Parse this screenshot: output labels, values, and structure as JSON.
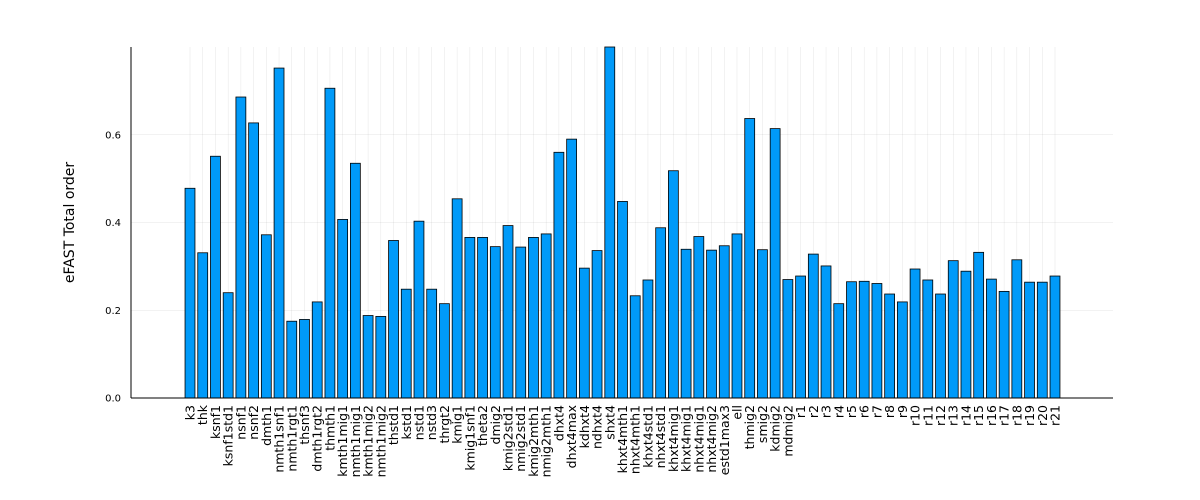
{
  "chart_data": {
    "type": "bar",
    "title": "",
    "xlabel": "",
    "ylabel": "eFAST Total order",
    "ylim": [
      0,
      0.8
    ],
    "yticks": [
      0.0,
      0.2,
      0.4,
      0.6
    ],
    "ytick_labels": [
      "0.0",
      "0.2",
      "0.4",
      "0.6"
    ],
    "grid": true,
    "legend": "none",
    "bar_color": "#009af9",
    "categories": [
      "k3",
      "thk",
      "ksnf1",
      "ksnf1std1",
      "nsnf1",
      "nsnf2",
      "dmth1",
      "nmth1snf1",
      "nmth1rgt1",
      "thsnf3",
      "dmth1rgt2",
      "thmth1",
      "kmth1mig1",
      "nmth1mig1",
      "kmth1mig2",
      "nmth1mig2",
      "thstd1",
      "kstd1",
      "nstd1",
      "nstd3",
      "thrgt2",
      "kmig1",
      "kmig1snf1",
      "theta2",
      "dmig2",
      "kmig2std1",
      "nmig2std1",
      "kmig2mth1",
      "nmig2mth1",
      "dhxt4",
      "dhxt4max",
      "kdhxt4",
      "ndhxt4",
      "shxt4",
      "khxt4mth1",
      "nhxt4mth1",
      "khxt4std1",
      "nhxt4std1",
      "khxt4mig1",
      "khxt4mig1",
      "nhxt4mig1",
      "nhxt4mig2",
      "estd1max3",
      "ell",
      "thmig2",
      "smig2",
      "kdmig2",
      "mdmig2",
      "r1",
      "r2",
      "r3",
      "r4",
      "r5",
      "r6",
      "r7",
      "r8",
      "r9",
      "r10",
      "r11",
      "r12",
      "r13",
      "r14",
      "r15",
      "r16",
      "r17",
      "r18",
      "r19",
      "r20",
      "r21"
    ],
    "values": [
      0.478,
      0.331,
      0.551,
      0.24,
      0.686,
      0.627,
      0.372,
      0.752,
      0.175,
      0.179,
      0.219,
      0.706,
      0.407,
      0.535,
      0.188,
      0.186,
      0.359,
      0.248,
      0.403,
      0.248,
      0.215,
      0.454,
      0.366,
      0.366,
      0.345,
      0.393,
      0.344,
      0.366,
      0.374,
      0.56,
      0.59,
      0.296,
      0.336,
      0.8,
      0.448,
      0.233,
      0.269,
      0.388,
      0.518,
      0.339,
      0.368,
      0.337,
      0.347,
      0.374,
      0.637,
      0.338,
      0.614,
      0.27,
      0.278,
      0.328,
      0.301,
      0.215,
      0.265,
      0.266,
      0.261,
      0.237,
      0.219,
      0.294,
      0.269,
      0.237,
      0.313,
      0.289,
      0.332,
      0.271,
      0.243,
      0.315,
      0.264,
      0.264,
      0.278
    ]
  }
}
